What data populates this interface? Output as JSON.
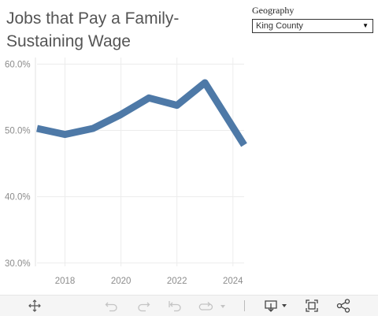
{
  "title": "Jobs that Pay a Family-Sustaining Wage",
  "filter": {
    "label": "Geography",
    "selected": "King County"
  },
  "colors": {
    "line": "#4e79a7",
    "grid": "#ececec",
    "axis_text": "#8c8c8c"
  },
  "chart_data": {
    "type": "line",
    "title": "Jobs that Pay a Family-Sustaining Wage",
    "x_ticks": [
      "2018",
      "2020",
      "2022",
      "2024"
    ],
    "y_ticks": [
      "30.0%",
      "40.0%",
      "50.0%",
      "60.0%"
    ],
    "xlim": [
      2017,
      2024.4
    ],
    "ylim": [
      29.5,
      61
    ],
    "grid": true,
    "series": [
      {
        "x": [
          2017,
          2018,
          2019,
          2020,
          2021,
          2022,
          2023,
          2024.4
        ],
        "y": [
          50.3,
          49.4,
          50.3,
          52.4,
          54.9,
          53.8,
          57.2,
          47.8
        ]
      }
    ]
  },
  "toolbar": {
    "icons": [
      "move-icon",
      "undo-icon",
      "redo-icon",
      "revert-icon",
      "refresh-icon",
      "download-icon",
      "fullscreen-icon",
      "share-icon"
    ]
  }
}
